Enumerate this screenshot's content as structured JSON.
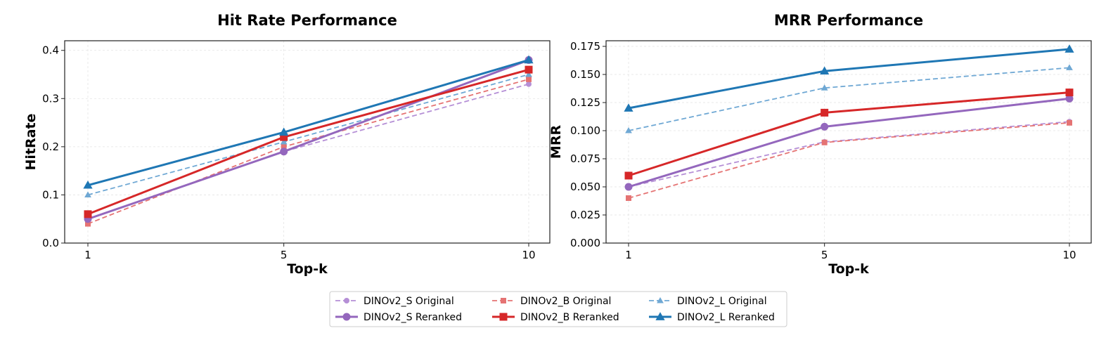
{
  "chart_data": [
    {
      "type": "line",
      "title": "Hit Rate Performance",
      "xlabel": "Top-k",
      "ylabel": "HitRate",
      "x": [
        1,
        5,
        10
      ],
      "xticks": [
        "1",
        "5",
        "10"
      ],
      "ylim": [
        0,
        0.42
      ],
      "yticks": [
        "0.0",
        "0.1",
        "0.2",
        "0.3",
        "0.4"
      ],
      "grid": true,
      "series": [
        {
          "name": "DINOv2_S Original",
          "values": [
            0.05,
            0.19,
            0.33
          ]
        },
        {
          "name": "DINOv2_S Reranked",
          "values": [
            0.05,
            0.19,
            0.38
          ]
        },
        {
          "name": "DINOv2_B Original",
          "values": [
            0.04,
            0.2,
            0.34
          ]
        },
        {
          "name": "DINOv2_B Reranked",
          "values": [
            0.06,
            0.22,
            0.36
          ]
        },
        {
          "name": "DINOv2_L Original",
          "values": [
            0.1,
            0.21,
            0.35
          ]
        },
        {
          "name": "DINOv2_L Reranked",
          "values": [
            0.12,
            0.23,
            0.38
          ]
        }
      ]
    },
    {
      "type": "line",
      "title": "MRR Performance",
      "xlabel": "Top-k",
      "ylabel": "MRR",
      "x": [
        1,
        5,
        10
      ],
      "xticks": [
        "1",
        "5",
        "10"
      ],
      "ylim": [
        0,
        0.18
      ],
      "yticks": [
        "0.000",
        "0.025",
        "0.050",
        "0.075",
        "0.100",
        "0.125",
        "0.150",
        "0.175"
      ],
      "grid": true,
      "series": [
        {
          "name": "DINOv2_S Original",
          "values": [
            0.05,
            0.09,
            0.108
          ]
        },
        {
          "name": "DINOv2_S Reranked",
          "values": [
            0.05,
            0.1035,
            0.1285
          ]
        },
        {
          "name": "DINOv2_B Original",
          "values": [
            0.04,
            0.0895,
            0.107
          ]
        },
        {
          "name": "DINOv2_B Reranked",
          "values": [
            0.06,
            0.116,
            0.134
          ]
        },
        {
          "name": "DINOv2_L Original",
          "values": [
            0.1,
            0.138,
            0.156
          ]
        },
        {
          "name": "DINOv2_L Reranked",
          "values": [
            0.12,
            0.153,
            0.1725
          ]
        }
      ]
    }
  ],
  "legend": {
    "position": "bottom-center",
    "entries": [
      "DINOv2_S Original",
      "DINOv2_B Original",
      "DINOv2_L Original",
      "DINOv2_S Reranked",
      "DINOv2_B Reranked",
      "DINOv2_L Reranked"
    ]
  },
  "styles": {
    "DINOv2_S Original": {
      "color": "#b58fd6",
      "dash": true,
      "marker": "circle"
    },
    "DINOv2_S Reranked": {
      "color": "#9467bd",
      "dash": false,
      "marker": "circle"
    },
    "DINOv2_B Original": {
      "color": "#e57373",
      "dash": true,
      "marker": "square"
    },
    "DINOv2_B Reranked": {
      "color": "#d62728",
      "dash": false,
      "marker": "square"
    },
    "DINOv2_L Original": {
      "color": "#6fa8d4",
      "dash": true,
      "marker": "triangle"
    },
    "DINOv2_L Reranked": {
      "color": "#1f77b4",
      "dash": false,
      "marker": "triangle"
    }
  }
}
